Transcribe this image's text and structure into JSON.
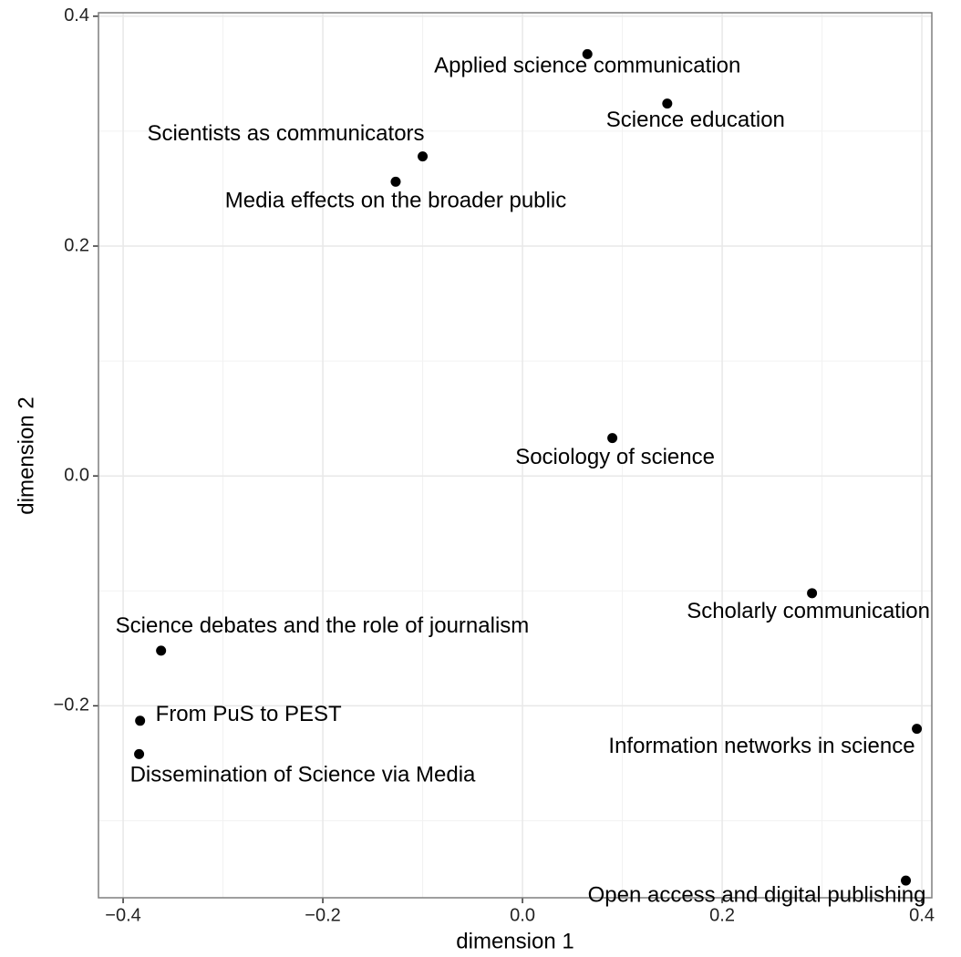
{
  "chart_data": {
    "type": "scatter",
    "x_label": "dimension 1",
    "y_label": "dimension 2",
    "color": "#000000",
    "grid": true,
    "xlim": [
      -0.4247,
      0.41
    ],
    "ylim": [
      -0.367,
      0.403
    ],
    "xticks": [
      {
        "value": -0.4,
        "label": "−0.4"
      },
      {
        "value": -0.2,
        "label": "−0.2"
      },
      {
        "value": 0,
        "label": "0.0"
      },
      0.2,
      0.4
    ],
    "yticks": [
      {
        "value": -0.2,
        "label": "−0.2"
      },
      {
        "value": 0,
        "label": "0.0"
      },
      0.2,
      0.4
    ],
    "x_minor_ticks": [
      -0.3,
      -0.1,
      0.1,
      0.3
    ],
    "y_minor_ticks": [
      -0.3,
      -0.1,
      0.1,
      0.3
    ],
    "points": [
      {
        "label": "Applied science communication",
        "x": 0.065,
        "y": 0.367
      },
      {
        "label": "Science education",
        "x": 0.145,
        "y": 0.324
      },
      {
        "label": "Scientists as communicators",
        "x": -0.1,
        "y": 0.278
      },
      {
        "label": "Media effects on the broader public",
        "x": -0.127,
        "y": 0.256
      },
      {
        "label": "Sociology of science",
        "x": 0.09,
        "y": 0.033
      },
      {
        "label": "Scholarly communication",
        "x": 0.29,
        "y": -0.102
      },
      {
        "label": "Science debates and the role of journalism",
        "x": -0.362,
        "y": -0.152
      },
      {
        "label": "From PuS to PEST",
        "x": -0.383,
        "y": -0.213
      },
      {
        "label": "Dissemination of Science via Media",
        "x": -0.384,
        "y": -0.242
      },
      {
        "label": "Information networks in science",
        "x": 0.395,
        "y": -0.22
      },
      {
        "label": "Open access and digital publishing",
        "x": 0.384,
        "y": -0.352
      }
    ]
  }
}
